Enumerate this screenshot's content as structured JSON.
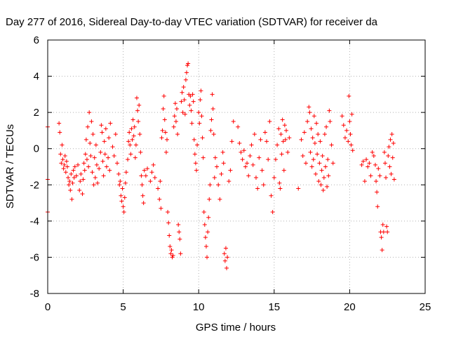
{
  "chart_data": {
    "type": "scatter",
    "title": "Day 277 of 2016, Sidereal Day-to-day VTEC variation (SDTVAR) for receiver da",
    "xlabel": "GPS time / hours",
    "ylabel": "SDTVAR / TECUs",
    "xlim": [
      0,
      25
    ],
    "ylim": [
      -8,
      6
    ],
    "xticks": [
      0,
      5,
      10,
      15,
      20,
      25
    ],
    "yticks": [
      -8,
      -6,
      -4,
      -2,
      0,
      2,
      4,
      6
    ],
    "grid": true,
    "marker": "+",
    "color": "#ff0000",
    "series": [
      {
        "values": [
          [
            0.0,
            1.2
          ],
          [
            0.0,
            -1.7
          ],
          [
            0.0,
            -3.5
          ],
          [
            0.75,
            1.4
          ],
          [
            0.8,
            0.9
          ],
          [
            0.85,
            -0.3
          ],
          [
            0.9,
            -0.8
          ],
          [
            0.95,
            0.2
          ],
          [
            1.0,
            -0.6
          ],
          [
            1.05,
            -1.1
          ],
          [
            1.1,
            -0.9
          ],
          [
            1.15,
            -0.4
          ],
          [
            1.2,
            -1.3
          ],
          [
            1.25,
            -0.7
          ],
          [
            1.3,
            -1.0
          ],
          [
            1.35,
            -1.6
          ],
          [
            1.4,
            -2.0
          ],
          [
            1.45,
            -1.8
          ],
          [
            1.5,
            -2.3
          ],
          [
            1.55,
            -1.4
          ],
          [
            1.6,
            -2.8
          ],
          [
            1.65,
            -1.9
          ],
          [
            1.7,
            -1.2
          ],
          [
            1.75,
            -1.6
          ],
          [
            1.8,
            -1.0
          ],
          [
            1.9,
            -1.5
          ],
          [
            2.0,
            -0.9
          ],
          [
            2.1,
            -2.3
          ],
          [
            2.15,
            -1.8
          ],
          [
            2.2,
            -1.4
          ],
          [
            2.3,
            -2.5
          ],
          [
            2.35,
            -1.7
          ],
          [
            2.4,
            -0.8
          ],
          [
            2.45,
            -1.2
          ],
          [
            2.5,
            -0.3
          ],
          [
            2.55,
            0.5
          ],
          [
            2.6,
            -0.6
          ],
          [
            2.65,
            1.2
          ],
          [
            2.7,
            -1.0
          ],
          [
            2.75,
            2.0
          ],
          [
            2.8,
            0.3
          ],
          [
            2.85,
            -0.4
          ],
          [
            2.9,
            1.5
          ],
          [
            2.95,
            -1.3
          ],
          [
            3.0,
            0.8
          ],
          [
            3.05,
            -2.0
          ],
          [
            3.1,
            -0.5
          ],
          [
            3.15,
            -1.6
          ],
          [
            3.2,
            0.2
          ],
          [
            3.25,
            -0.9
          ],
          [
            3.3,
            -1.9
          ],
          [
            3.4,
            -1.1
          ],
          [
            3.5,
            -0.2
          ],
          [
            3.55,
            1.3
          ],
          [
            3.6,
            0.9
          ],
          [
            3.65,
            -0.7
          ],
          [
            3.7,
            -1.5
          ],
          [
            3.75,
            0.4
          ],
          [
            3.8,
            -0.3
          ],
          [
            3.85,
            1.1
          ],
          [
            3.9,
            -1.0
          ],
          [
            4.0,
            -0.5
          ],
          [
            4.05,
            0.6
          ],
          [
            4.1,
            -1.2
          ],
          [
            4.15,
            1.4
          ],
          [
            4.3,
            0.1
          ],
          [
            4.4,
            -0.4
          ],
          [
            4.5,
            0.8
          ],
          [
            4.6,
            -0.8
          ],
          [
            4.7,
            -1.4
          ],
          [
            4.75,
            -2.0
          ],
          [
            4.8,
            -1.8
          ],
          [
            4.85,
            -2.6
          ],
          [
            4.9,
            -2.9
          ],
          [
            4.95,
            -2.2
          ],
          [
            5.0,
            -3.2
          ],
          [
            5.05,
            -3.5
          ],
          [
            5.1,
            -2.7
          ],
          [
            5.15,
            -1.9
          ],
          [
            5.2,
            -1.3
          ],
          [
            5.3,
            -0.6
          ],
          [
            5.35,
            0.4
          ],
          [
            5.4,
            0.9
          ],
          [
            5.45,
            0.2
          ],
          [
            5.5,
            -0.3
          ],
          [
            5.55,
            1.1
          ],
          [
            5.6,
            0.5
          ],
          [
            5.65,
            1.6
          ],
          [
            5.7,
            0.7
          ],
          [
            5.75,
            1.2
          ],
          [
            5.8,
            -0.5
          ],
          [
            5.85,
            0.2
          ],
          [
            5.9,
            2.8
          ],
          [
            5.95,
            2.1
          ],
          [
            6.0,
            1.5
          ],
          [
            6.05,
            2.4
          ],
          [
            6.1,
            0.8
          ],
          [
            6.15,
            -0.2
          ],
          [
            6.2,
            -1.5
          ],
          [
            6.25,
            -2.0
          ],
          [
            6.3,
            -2.6
          ],
          [
            6.35,
            -3.0
          ],
          [
            6.4,
            -1.2
          ],
          [
            6.5,
            -1.5
          ],
          [
            6.6,
            -1.1
          ],
          [
            6.8,
            -1.8
          ],
          [
            6.9,
            -1.3
          ],
          [
            7.0,
            -0.9
          ],
          [
            7.1,
            -1.6
          ],
          [
            7.3,
            -2.2
          ],
          [
            7.4,
            -2.8
          ],
          [
            7.45,
            -1.8
          ],
          [
            7.5,
            -3.3
          ],
          [
            7.55,
            0.6
          ],
          [
            7.6,
            1.0
          ],
          [
            7.65,
            2.2
          ],
          [
            7.7,
            2.9
          ],
          [
            7.75,
            1.6
          ],
          [
            7.8,
            0.9
          ],
          [
            7.85,
            -0.2
          ],
          [
            7.9,
            0.5
          ],
          [
            7.95,
            -3.5
          ],
          [
            8.0,
            -4.1
          ],
          [
            8.05,
            -4.8
          ],
          [
            8.1,
            -5.4
          ],
          [
            8.15,
            -5.8
          ],
          [
            8.2,
            -5.6
          ],
          [
            8.25,
            -6.0
          ],
          [
            8.3,
            -5.9
          ],
          [
            8.35,
            1.2
          ],
          [
            8.4,
            1.8
          ],
          [
            8.45,
            2.5
          ],
          [
            8.5,
            1.5
          ],
          [
            8.55,
            2.2
          ],
          [
            8.6,
            0.8
          ],
          [
            8.65,
            -4.2
          ],
          [
            8.7,
            -4.6
          ],
          [
            8.75,
            -5.0
          ],
          [
            8.8,
            -5.8
          ],
          [
            8.85,
            2.6
          ],
          [
            8.9,
            3.1
          ],
          [
            8.95,
            2.0
          ],
          [
            9.0,
            3.4
          ],
          [
            9.05,
            2.7
          ],
          [
            9.1,
            1.9
          ],
          [
            9.15,
            3.8
          ],
          [
            9.2,
            4.2
          ],
          [
            9.25,
            4.6
          ],
          [
            9.3,
            4.7
          ],
          [
            9.35,
            3.0
          ],
          [
            9.4,
            2.4
          ],
          [
            9.45,
            2.9
          ],
          [
            9.5,
            2.1
          ],
          [
            9.55,
            1.4
          ],
          [
            9.6,
            3.0
          ],
          [
            9.65,
            2.6
          ],
          [
            9.7,
            0.5
          ],
          [
            9.75,
            -0.3
          ],
          [
            9.8,
            -0.8
          ],
          [
            9.85,
            -1.2
          ],
          [
            9.9,
            0.2
          ],
          [
            10.0,
            2.0
          ],
          [
            10.05,
            1.4
          ],
          [
            10.1,
            2.7
          ],
          [
            10.15,
            3.2
          ],
          [
            10.2,
            1.8
          ],
          [
            10.25,
            0.6
          ],
          [
            10.3,
            -0.5
          ],
          [
            10.35,
            -3.5
          ],
          [
            10.4,
            -4.2
          ],
          [
            10.45,
            -4.9
          ],
          [
            10.5,
            -5.4
          ],
          [
            10.55,
            -6.0
          ],
          [
            10.6,
            -4.6
          ],
          [
            10.65,
            -3.8
          ],
          [
            10.7,
            -2.8
          ],
          [
            10.75,
            -2.0
          ],
          [
            10.8,
            1.0
          ],
          [
            10.85,
            1.6
          ],
          [
            10.9,
            3.0
          ],
          [
            10.95,
            2.2
          ],
          [
            11.0,
            0.8
          ],
          [
            11.05,
            -1.6
          ],
          [
            11.1,
            -0.5
          ],
          [
            11.2,
            -1.0
          ],
          [
            11.3,
            -2.0
          ],
          [
            11.4,
            -2.8
          ],
          [
            11.5,
            -1.4
          ],
          [
            11.6,
            -0.2
          ],
          [
            11.65,
            -0.8
          ],
          [
            11.7,
            -5.8
          ],
          [
            11.75,
            -6.2
          ],
          [
            11.8,
            -5.5
          ],
          [
            11.85,
            -6.6
          ],
          [
            11.9,
            -6.0
          ],
          [
            12.0,
            -1.8
          ],
          [
            12.1,
            -1.2
          ],
          [
            12.2,
            0.4
          ],
          [
            12.3,
            1.5
          ],
          [
            12.6,
            1.2
          ],
          [
            12.7,
            0.3
          ],
          [
            12.8,
            -0.2
          ],
          [
            12.9,
            -0.6
          ],
          [
            13.0,
            -0.1
          ],
          [
            13.1,
            -1.0
          ],
          [
            13.2,
            -0.8
          ],
          [
            13.3,
            -1.5
          ],
          [
            13.4,
            -0.4
          ],
          [
            13.5,
            0.2
          ],
          [
            13.6,
            -0.9
          ],
          [
            13.7,
            0.8
          ],
          [
            13.8,
            -1.6
          ],
          [
            13.9,
            -2.2
          ],
          [
            14.0,
            -0.5
          ],
          [
            14.1,
            0.5
          ],
          [
            14.2,
            -1.2
          ],
          [
            14.3,
            -2.0
          ],
          [
            14.4,
            0.9
          ],
          [
            14.5,
            0.4
          ],
          [
            14.6,
            -0.6
          ],
          [
            14.7,
            1.5
          ],
          [
            14.8,
            -2.6
          ],
          [
            14.9,
            -3.5
          ],
          [
            15.0,
            -1.6
          ],
          [
            15.1,
            -0.6
          ],
          [
            15.2,
            0.2
          ],
          [
            15.3,
            1.1
          ],
          [
            15.35,
            -1.9
          ],
          [
            15.4,
            -2.2
          ],
          [
            15.45,
            0.8
          ],
          [
            15.5,
            -0.3
          ],
          [
            15.55,
            1.6
          ],
          [
            15.6,
            0.4
          ],
          [
            15.65,
            -1.2
          ],
          [
            15.7,
            1.3
          ],
          [
            15.75,
            0.5
          ],
          [
            15.8,
            1.0
          ],
          [
            15.9,
            -0.2
          ],
          [
            16.0,
            0.6
          ],
          [
            16.6,
            -2.2
          ],
          [
            16.8,
            0.5
          ],
          [
            16.9,
            -0.4
          ],
          [
            17.0,
            0.9
          ],
          [
            17.1,
            -0.8
          ],
          [
            17.2,
            1.5
          ],
          [
            17.3,
            2.3
          ],
          [
            17.35,
            2.0
          ],
          [
            17.4,
            -0.2
          ],
          [
            17.45,
            1.1
          ],
          [
            17.5,
            -1.0
          ],
          [
            17.55,
            0.6
          ],
          [
            17.6,
            -0.6
          ],
          [
            17.65,
            1.8
          ],
          [
            17.7,
            0.3
          ],
          [
            17.75,
            -1.4
          ],
          [
            17.8,
            1.4
          ],
          [
            17.85,
            -0.3
          ],
          [
            17.9,
            0.8
          ],
          [
            17.95,
            -1.8
          ],
          [
            18.0,
            -0.8
          ],
          [
            18.05,
            0.4
          ],
          [
            18.1,
            -2.0
          ],
          [
            18.15,
            -1.2
          ],
          [
            18.2,
            -0.4
          ],
          [
            18.25,
            -2.3
          ],
          [
            18.3,
            -1.6
          ],
          [
            18.35,
            0.8
          ],
          [
            18.4,
            -1.0
          ],
          [
            18.45,
            1.2
          ],
          [
            18.5,
            -2.1
          ],
          [
            18.55,
            -0.6
          ],
          [
            18.6,
            -1.5
          ],
          [
            18.65,
            2.1
          ],
          [
            18.7,
            1.5
          ],
          [
            18.8,
            0.2
          ],
          [
            18.9,
            -0.8
          ],
          [
            19.5,
            1.8
          ],
          [
            19.6,
            1.3
          ],
          [
            19.7,
            0.6
          ],
          [
            19.8,
            1.0
          ],
          [
            19.9,
            0.4
          ],
          [
            19.95,
            2.9
          ],
          [
            20.0,
            1.5
          ],
          [
            20.05,
            0.8
          ],
          [
            20.1,
            0.2
          ],
          [
            20.15,
            1.9
          ],
          [
            20.2,
            -0.1
          ],
          [
            20.8,
            -0.9
          ],
          [
            20.9,
            -0.7
          ],
          [
            21.0,
            -1.8
          ],
          [
            21.1,
            -0.6
          ],
          [
            21.2,
            -1.0
          ],
          [
            21.3,
            -0.8
          ],
          [
            21.4,
            -1.5
          ],
          [
            21.5,
            -0.2
          ],
          [
            21.6,
            -0.4
          ],
          [
            21.7,
            -0.9
          ],
          [
            21.75,
            -1.8
          ],
          [
            21.8,
            -2.4
          ],
          [
            21.85,
            -3.2
          ],
          [
            21.9,
            -1.1
          ],
          [
            22.0,
            -1.5
          ],
          [
            22.05,
            -4.6
          ],
          [
            22.1,
            -4.9
          ],
          [
            22.15,
            -5.6
          ],
          [
            22.2,
            -4.2
          ],
          [
            22.25,
            -4.6
          ],
          [
            22.3,
            -0.2
          ],
          [
            22.35,
            -0.8
          ],
          [
            22.4,
            -1.6
          ],
          [
            22.45,
            -4.3
          ],
          [
            22.5,
            -4.6
          ],
          [
            22.55,
            -0.4
          ],
          [
            22.6,
            0.1
          ],
          [
            22.65,
            -1.0
          ],
          [
            22.7,
            0.5
          ],
          [
            22.75,
            -1.4
          ],
          [
            22.8,
            0.8
          ],
          [
            22.85,
            -0.5
          ],
          [
            22.9,
            0.3
          ],
          [
            22.95,
            -1.7
          ]
        ]
      }
    ]
  }
}
